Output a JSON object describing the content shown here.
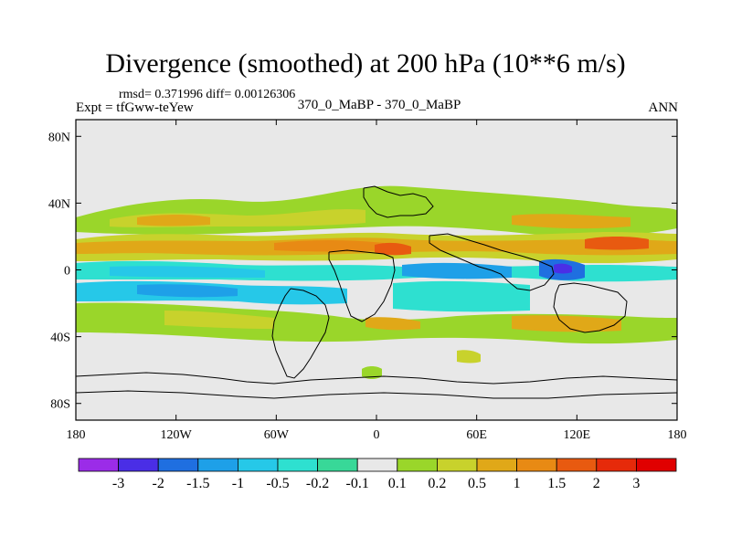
{
  "chart_data": {
    "type": "heatmap",
    "title": "Divergence (smoothed) at 200 hPa (10**6 m/s)",
    "stats": "rmsd= 0.371996 diff= 0.00126306",
    "experiment": "Expt = tfGww-teYew",
    "case": "370_0_MaBP - 370_0_MaBP",
    "season": "ANN",
    "xlim": [
      -180,
      180
    ],
    "ylim": [
      -90,
      90
    ],
    "x_ticks": [
      {
        "value": -180,
        "label": "180"
      },
      {
        "value": -120,
        "label": "120W"
      },
      {
        "value": -60,
        "label": "60W"
      },
      {
        "value": 0,
        "label": "0"
      },
      {
        "value": 60,
        "label": "60E"
      },
      {
        "value": 120,
        "label": "120E"
      },
      {
        "value": 180,
        "label": "180"
      }
    ],
    "y_ticks": [
      {
        "value": 80,
        "label": "80N"
      },
      {
        "value": 40,
        "label": "40N"
      },
      {
        "value": 0,
        "label": "0"
      },
      {
        "value": -40,
        "label": "40S"
      },
      {
        "value": -80,
        "label": "80S"
      }
    ],
    "levels": [
      "-3",
      "-2",
      "-1.5",
      "-1",
      "-0.5",
      "-0.2",
      "-0.1",
      "0.1",
      "0.2",
      "0.5",
      "1",
      "1.5",
      "2",
      "3"
    ],
    "colors": [
      "#9b2ce8",
      "#4a2ee6",
      "#1f6fe0",
      "#1ea0e8",
      "#26c8e8",
      "#2ee0d0",
      "#38d898",
      "#e8e8e8",
      "#9ad62a",
      "#c8d22c",
      "#e0a818",
      "#e88a14",
      "#e85a10",
      "#e62a0a",
      "#e00000"
    ],
    "features": [
      {
        "name": "northern tropical positive band",
        "lon": [
          -180,
          180
        ],
        "lat": [
          5,
          18
        ],
        "value": 0.6
      },
      {
        "name": "mid-latitude positive band",
        "lon": [
          -180,
          180
        ],
        "lat": [
          28,
          40
        ],
        "value": 0.5
      },
      {
        "name": "equatorial negative band",
        "lon": [
          -180,
          180
        ],
        "lat": [
          -6,
          2
        ],
        "value": -0.5
      },
      {
        "name": "southern subtropical negative band",
        "lon": [
          -180,
          60
        ],
        "lat": [
          -15,
          -6
        ],
        "value": -0.6
      },
      {
        "name": "southern positive band",
        "lon": [
          -180,
          180
        ],
        "lat": [
          -30,
          -15
        ],
        "value": 0.4
      },
      {
        "name": "maritime continent negative maximum",
        "lon": 112,
        "lat": 0,
        "value": -2.5
      },
      {
        "name": "tropical pacific positive maximum",
        "lon": 150,
        "lat": 15,
        "value": 1.8
      },
      {
        "name": "african positive maximum",
        "lon": 10,
        "lat": 12,
        "value": 1.6
      }
    ]
  }
}
